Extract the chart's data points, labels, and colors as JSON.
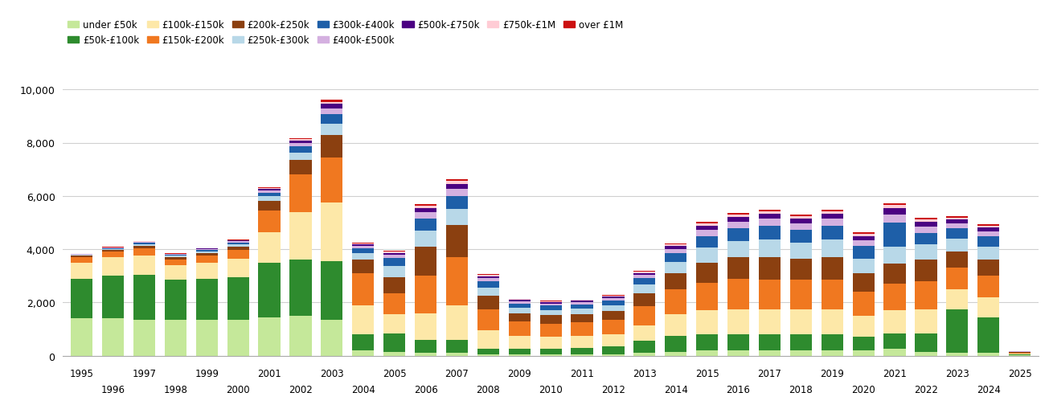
{
  "years": [
    1995,
    1996,
    1997,
    1998,
    1999,
    2000,
    2001,
    2002,
    2003,
    2004,
    2005,
    2006,
    2007,
    2008,
    2009,
    2010,
    2011,
    2012,
    2013,
    2014,
    2015,
    2016,
    2017,
    2018,
    2019,
    2020,
    2021,
    2022,
    2023,
    2024,
    2025
  ],
  "series": {
    "under_50k": [
      1400,
      1400,
      1350,
      1350,
      1350,
      1350,
      1450,
      1500,
      1350,
      200,
      150,
      100,
      100,
      50,
      50,
      50,
      50,
      50,
      100,
      150,
      200,
      200,
      200,
      200,
      200,
      200,
      250,
      150,
      100,
      100,
      10
    ],
    "50k_100k": [
      1500,
      1600,
      1700,
      1500,
      1550,
      1600,
      2050,
      2100,
      2200,
      600,
      700,
      500,
      500,
      200,
      200,
      200,
      250,
      300,
      450,
      600,
      600,
      600,
      600,
      600,
      600,
      500,
      600,
      700,
      1650,
      1350,
      50
    ],
    "100k_150k": [
      600,
      700,
      700,
      550,
      600,
      700,
      1150,
      1800,
      2200,
      1100,
      700,
      1000,
      1300,
      700,
      500,
      450,
      450,
      450,
      600,
      800,
      900,
      950,
      950,
      950,
      950,
      800,
      850,
      900,
      750,
      750,
      30
    ],
    "150k_200k": [
      200,
      220,
      280,
      220,
      250,
      320,
      800,
      1400,
      1700,
      1200,
      800,
      1400,
      1800,
      800,
      550,
      500,
      500,
      550,
      700,
      950,
      1050,
      1150,
      1100,
      1100,
      1100,
      900,
      1000,
      1050,
      800,
      800,
      30
    ],
    "200k_250k": [
      50,
      60,
      100,
      80,
      100,
      130,
      350,
      550,
      850,
      500,
      600,
      1100,
      1200,
      500,
      300,
      320,
      320,
      330,
      500,
      600,
      750,
      800,
      850,
      800,
      850,
      700,
      750,
      800,
      620,
      620,
      15
    ],
    "250k_300k": [
      30,
      35,
      60,
      50,
      65,
      85,
      180,
      280,
      420,
      260,
      430,
      600,
      600,
      300,
      200,
      200,
      200,
      220,
      320,
      420,
      550,
      600,
      650,
      600,
      650,
      550,
      650,
      580,
      480,
      480,
      10
    ],
    "300k_400k": [
      20,
      25,
      50,
      40,
      55,
      65,
      130,
      220,
      360,
      170,
      280,
      450,
      480,
      240,
      160,
      160,
      160,
      160,
      240,
      320,
      450,
      490,
      530,
      490,
      530,
      460,
      900,
      440,
      380,
      380,
      8
    ],
    "400k_500k": [
      12,
      15,
      28,
      22,
      32,
      42,
      85,
      130,
      210,
      90,
      120,
      240,
      280,
      120,
      80,
      80,
      80,
      90,
      120,
      160,
      220,
      240,
      260,
      240,
      260,
      220,
      300,
      230,
      190,
      190,
      4
    ],
    "500k_750k": [
      10,
      12,
      20,
      16,
      24,
      32,
      65,
      95,
      160,
      70,
      85,
      160,
      200,
      80,
      55,
      55,
      55,
      65,
      80,
      110,
      160,
      170,
      185,
      175,
      185,
      165,
      230,
      170,
      140,
      140,
      3
    ],
    "750k_1M": [
      6,
      7,
      12,
      9,
      13,
      16,
      32,
      52,
      85,
      38,
      45,
      90,
      105,
      45,
      30,
      30,
      30,
      35,
      45,
      60,
      85,
      90,
      100,
      92,
      100,
      88,
      120,
      90,
      72,
      72,
      2
    ],
    "over_1M": [
      4,
      5,
      8,
      6,
      9,
      11,
      22,
      38,
      65,
      28,
      32,
      62,
      72,
      28,
      18,
      18,
      18,
      22,
      30,
      40,
      58,
      62,
      68,
      62,
      68,
      58,
      80,
      60,
      48,
      48,
      1
    ]
  },
  "colors": {
    "under_50k": "#c5e89a",
    "50k_100k": "#2e8b2e",
    "100k_150k": "#fde8a8",
    "150k_200k": "#f07820",
    "200k_250k": "#8b4010",
    "250k_300k": "#b8d8e8",
    "300k_400k": "#1e5fa8",
    "400k_500k": "#d4b0e0",
    "500k_750k": "#4b0082",
    "750k_1M": "#ffccd5",
    "over_1M": "#cc1111"
  },
  "labels": {
    "under_50k": "under £50k",
    "50k_100k": "£50k-£100k",
    "100k_150k": "£100k-£150k",
    "150k_200k": "£150k-£200k",
    "200k_250k": "£200k-£250k",
    "250k_300k": "£250k-£300k",
    "300k_400k": "£300k-£400k",
    "400k_500k": "£400k-£500k",
    "500k_750k": "£500k-£750k",
    "750k_1M": "£750k-£1M",
    "over_1M": "over £1M"
  },
  "ylim": [
    0,
    10000
  ],
  "yticks": [
    0,
    2000,
    4000,
    6000,
    8000,
    10000
  ],
  "bar_width": 0.7,
  "background_color": "#ffffff"
}
